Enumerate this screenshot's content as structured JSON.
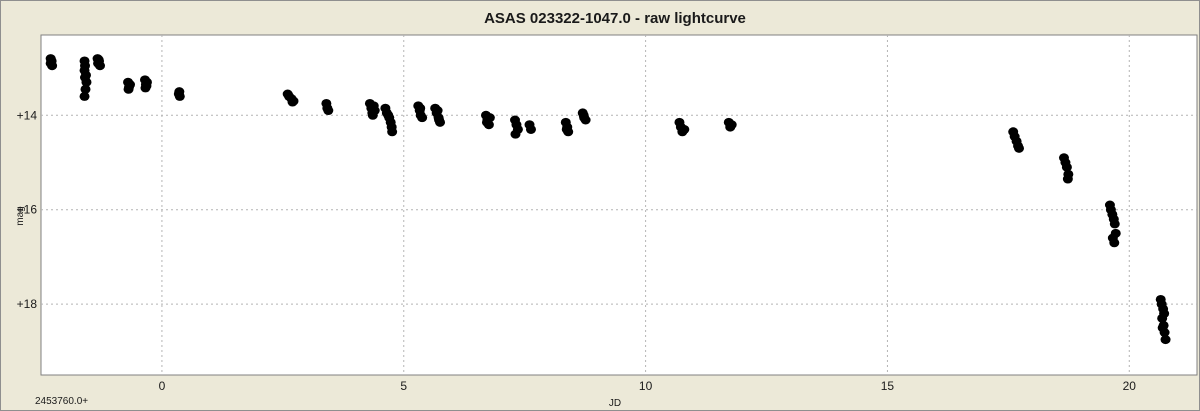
{
  "chart_data": {
    "type": "scatter",
    "title": "ASAS 023322-1047.0 - raw lightcurve",
    "xlabel": "JD",
    "ylabel": "mag",
    "x_offset_label": "2453760.0+",
    "xlim": [
      -2.5,
      21.4
    ],
    "ylim": [
      12.3,
      19.5
    ],
    "y_inverted": true,
    "grid": true,
    "x_ticks": [
      0,
      5,
      10,
      15,
      20
    ],
    "x_tick_labels": [
      "0",
      "5",
      "10",
      "15",
      "20"
    ],
    "y_ticks": [
      14,
      16,
      18
    ],
    "y_tick_labels": [
      "+14",
      "+16",
      "+18"
    ],
    "point_color": "#000000",
    "background_color": "#ffffff",
    "frame_color": "#ece9d8",
    "grid_color": "#b4b4b4",
    "series": [
      {
        "x": [
          -2.3,
          -2.3,
          -2.28,
          -2.27,
          -2.29,
          -1.6,
          -1.59,
          -1.6,
          -1.57,
          -1.56,
          -1.58,
          -1.6,
          -1.59,
          -1.33,
          -1.32,
          -1.3,
          -1.28,
          -1.31,
          -0.7,
          -0.68,
          -0.66,
          -0.69,
          -0.35,
          -0.33,
          -0.31,
          -0.34,
          -0.32,
          0.35,
          0.37,
          0.36,
          2.6,
          2.63,
          2.68,
          2.72,
          2.7,
          3.4,
          3.42,
          3.44,
          4.3,
          4.33,
          4.35,
          4.38,
          4.36,
          4.4,
          4.62,
          4.65,
          4.7,
          4.73,
          4.75,
          4.76,
          4.68,
          5.3,
          5.33,
          5.35,
          5.38,
          5.34,
          5.65,
          5.68,
          5.72,
          5.75,
          5.7,
          5.73,
          6.7,
          6.73,
          6.76,
          6.72,
          6.78,
          7.3,
          7.33,
          7.36,
          7.31,
          7.6,
          7.63,
          8.35,
          8.38,
          8.4,
          8.37,
          8.7,
          8.73,
          8.76,
          8.72,
          10.7,
          10.73,
          10.76,
          10.8,
          11.72,
          11.75,
          11.78,
          17.6,
          17.63,
          17.67,
          17.7,
          17.72,
          18.65,
          18.68,
          18.71,
          18.74,
          18.73,
          19.6,
          19.62,
          19.65,
          19.68,
          19.7,
          19.72,
          19.66,
          19.69,
          20.65,
          20.67,
          20.7,
          20.72,
          20.68,
          20.71,
          20.73,
          20.75,
          20.69
        ],
        "y": [
          12.8,
          12.9,
          12.85,
          12.95,
          12.88,
          12.85,
          12.95,
          13.05,
          13.15,
          13.3,
          13.45,
          13.6,
          13.2,
          12.8,
          12.9,
          12.85,
          12.95,
          12.82,
          13.3,
          13.4,
          13.35,
          13.45,
          13.25,
          13.35,
          13.3,
          13.42,
          13.38,
          13.55,
          13.6,
          13.5,
          13.55,
          13.6,
          13.65,
          13.7,
          13.72,
          13.75,
          13.85,
          13.9,
          13.75,
          13.85,
          13.95,
          13.8,
          14.0,
          13.9,
          13.85,
          13.95,
          14.05,
          14.15,
          14.25,
          14.35,
          14.0,
          13.8,
          13.9,
          14.0,
          14.05,
          13.85,
          13.85,
          13.95,
          14.05,
          14.15,
          13.9,
          14.1,
          14.0,
          14.1,
          14.2,
          14.15,
          14.05,
          14.1,
          14.2,
          14.3,
          14.4,
          14.2,
          14.3,
          14.15,
          14.25,
          14.35,
          14.3,
          13.95,
          14.05,
          14.1,
          14.0,
          14.15,
          14.25,
          14.35,
          14.3,
          14.15,
          14.25,
          14.2,
          14.35,
          14.45,
          14.55,
          14.65,
          14.7,
          14.9,
          15.0,
          15.1,
          15.25,
          15.35,
          15.9,
          16.0,
          16.1,
          16.2,
          16.3,
          16.5,
          16.6,
          16.7,
          17.9,
          18.0,
          18.1,
          18.2,
          18.3,
          18.45,
          18.6,
          18.75,
          18.5
        ]
      }
    ]
  }
}
